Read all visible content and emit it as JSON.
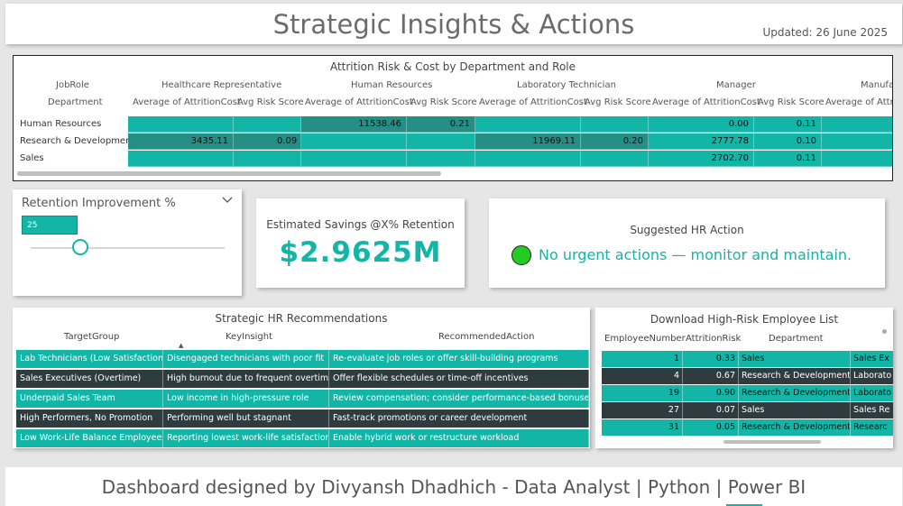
{
  "header": {
    "title": "Strategic Insights & Actions",
    "updated": "Updated: 26 June 2025"
  },
  "matrix": {
    "title": "Attrition Risk & Cost by Department and Role",
    "row_header_top": "JobRole",
    "row_header": "Department",
    "roles": [
      "Healthcare Representative",
      "Human Resources",
      "Laboratory Technician",
      "Manager",
      "Manufa"
    ],
    "measures": [
      "Average of AttritionCost",
      "Avg Risk Score"
    ],
    "rows": [
      {
        "department": "Human Resources",
        "cells": [
          "",
          "",
          "11538.46",
          "0.21",
          "",
          "",
          "0.00",
          "0.11",
          ""
        ]
      },
      {
        "department": "Research & Development",
        "cells": [
          "3435.11",
          "0.09",
          "",
          "",
          "11969.11",
          "0.20",
          "2777.78",
          "0.10",
          ""
        ]
      },
      {
        "department": "Sales",
        "cells": [
          "",
          "",
          "",
          "",
          "",
          "",
          "2702.70",
          "0.11",
          ""
        ]
      }
    ]
  },
  "slicer": {
    "title": "Retention Improvement %",
    "value": "25",
    "level_percent": 25
  },
  "kpi": {
    "label": "Estimated Savings @X% Retention",
    "value": "$2.9625M"
  },
  "action": {
    "label": "Suggested HR Action",
    "message": "No urgent actions — monitor and maintain.",
    "status_color": "#22cc22"
  },
  "recommendations": {
    "title": "Strategic HR Recommendations",
    "columns": [
      "TargetGroup",
      "KeyInsight",
      "RecommendedAction"
    ],
    "rows": [
      [
        "Lab Technicians (Low Satisfaction)",
        "Disengaged technicians with poor fit",
        "Re-evaluate job roles or offer skill-building programs"
      ],
      [
        "Sales Executives (Overtime)",
        "High burnout due to frequent overtime",
        "Offer flexible schedules or time-off incentives"
      ],
      [
        "Underpaid Sales Team",
        "Low income in high-pressure role",
        "Review compensation; consider performance-based bonuses"
      ],
      [
        "High Performers, No Promotion",
        "Performing well but stagnant",
        "Fast-track promotions or career development"
      ],
      [
        "Low Work-Life Balance Employees",
        "Reporting lowest work-life satisfaction",
        "Enable hybrid work or restructure workload"
      ]
    ]
  },
  "risk_list": {
    "title": "Download High-Risk Employee List",
    "columns": [
      "EmployeeNumber",
      "AttritionRisk",
      "Department",
      ""
    ],
    "rows": [
      [
        "1",
        "0.33",
        "Sales",
        "Sales Ex"
      ],
      [
        "4",
        "0.67",
        "Research & Development",
        "Laborato"
      ],
      [
        "19",
        "0.90",
        "Research & Development",
        "Laborato"
      ],
      [
        "27",
        "0.07",
        "Sales",
        "Sales Re"
      ],
      [
        "31",
        "0.05",
        "Research & Development",
        "Researc"
      ]
    ]
  },
  "footer": {
    "text": "Dashboard designed by Divyansh Dhadhich - Data Analyst | Python | Power BI"
  },
  "colors": {
    "accent": "#12b5a6",
    "accent_dark": "#258f86",
    "row_dark": "#2e3c3f"
  }
}
